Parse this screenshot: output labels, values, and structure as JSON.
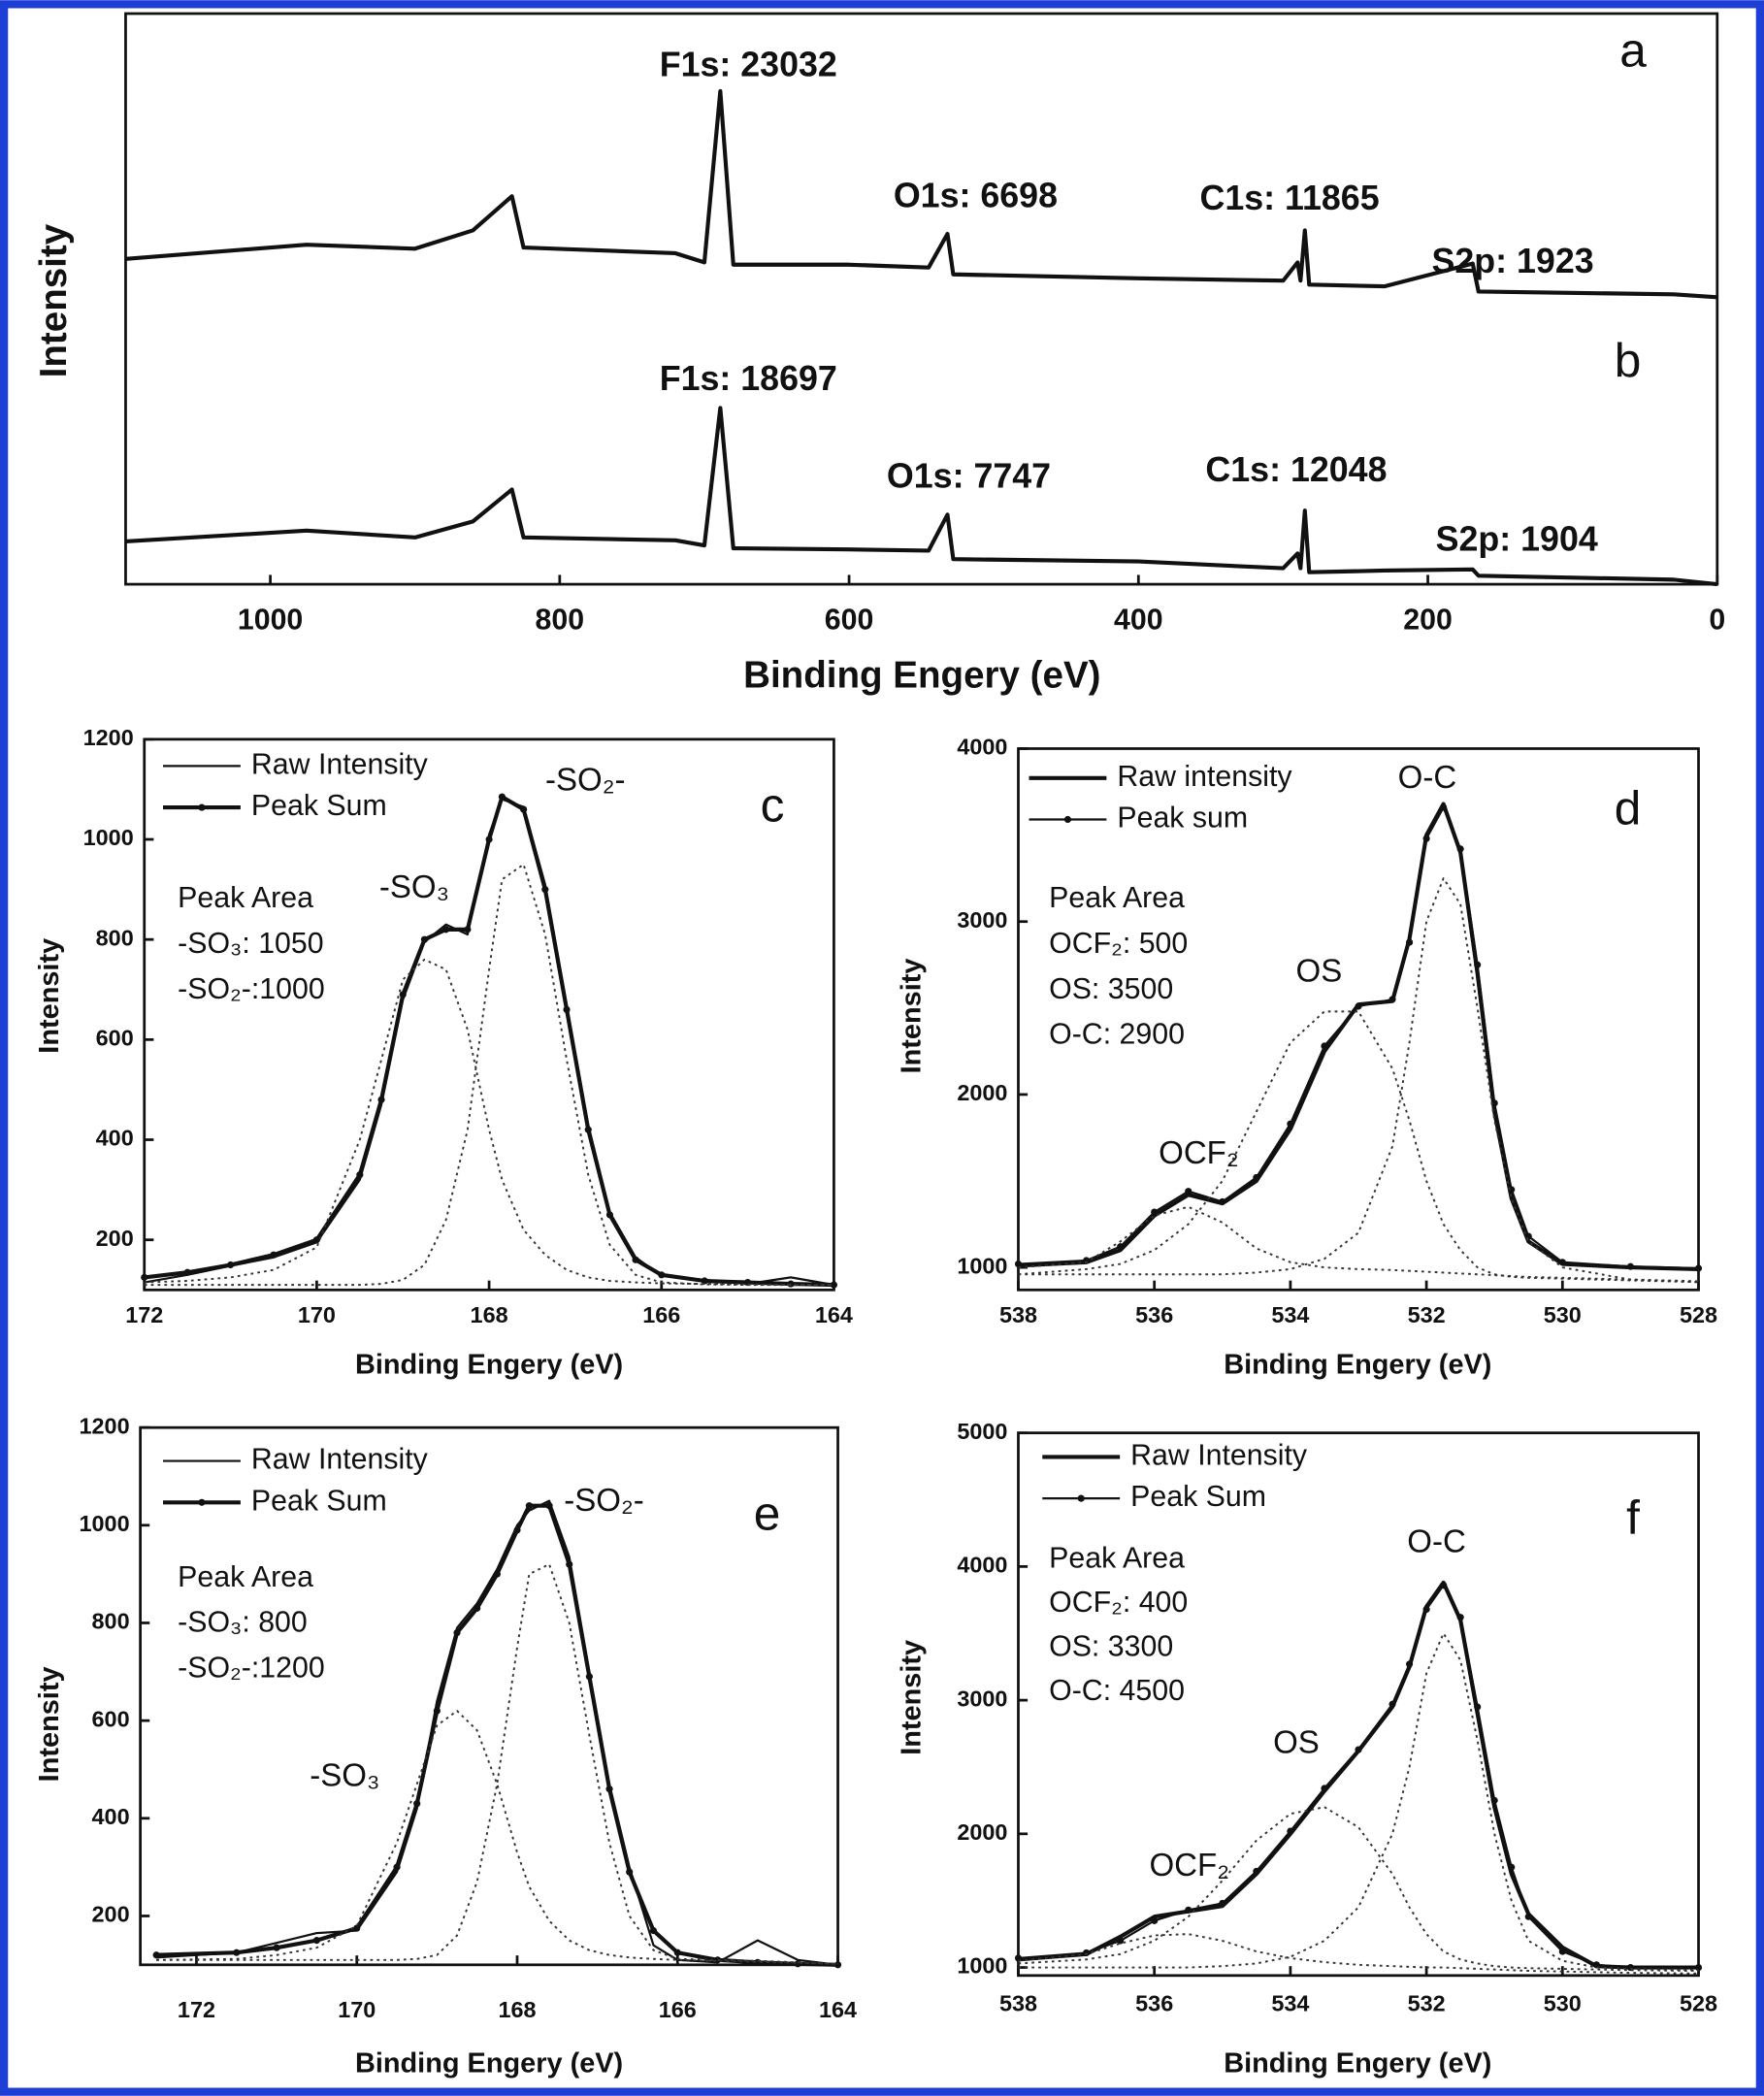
{
  "chart_data": [
    {
      "type": "line",
      "x_label": "Binding Engery (eV)",
      "y_label": "Intensity",
      "xlim": [
        1100,
        0
      ],
      "ylim": [
        0,
        100
      ],
      "xticks": [
        1000,
        800,
        600,
        400,
        200,
        0
      ],
      "panel_labels": [
        "a",
        "b"
      ],
      "annotations": [
        "F1s: 23032",
        "O1s: 6698",
        "C1s: 11865",
        "S2p: 1923",
        "F1s: 18697",
        "O1s: 7747",
        "C1s: 12048",
        "S2p: 1904"
      ],
      "x": [
        1100,
        975,
        900,
        860,
        833,
        825,
        720,
        700,
        689,
        680,
        600,
        545,
        532,
        528,
        400,
        300,
        290,
        288,
        285,
        282,
        230,
        169,
        165,
        30,
        0
      ],
      "series": [
        {
          "color": "#111111",
          "width": 3,
          "values": [
            57,
            59.5,
            58.8,
            62,
            68,
            59,
            58,
            56.4,
            86.4,
            56,
            56,
            55.5,
            61.4,
            54.3,
            53.6,
            53.2,
            56.4,
            53.2,
            62,
            52.5,
            52.2,
            56.2,
            51.3,
            50.8,
            50.3
          ]
        },
        {
          "color": "#111111",
          "width": 3,
          "values": [
            7.5,
            9.4,
            8.2,
            11,
            16.6,
            8.2,
            7.7,
            6.8,
            30.9,
            6.3,
            6.1,
            5.9,
            12.2,
            4.4,
            4,
            2.8,
            5.4,
            2.8,
            12.9,
            2.1,
            2.4,
            2.6,
            1.5,
            0.8,
            0
          ]
        }
      ]
    },
    {
      "type": "line",
      "x_label": "Binding Engery (eV)",
      "y_label": "Intensity",
      "xlim": [
        172,
        164
      ],
      "ylim": [
        100,
        1200
      ],
      "xticks": [
        172,
        170,
        168,
        166,
        164
      ],
      "yticks": [
        200,
        400,
        600,
        800,
        1000,
        1200
      ],
      "panel_labels": [
        "c"
      ],
      "annotations": [
        "-SO₂-",
        "-SO₃"
      ],
      "peak_area": [
        "Peak Area",
        "-SO₃: 1050",
        "-SO₂-:1000"
      ],
      "x": [
        172,
        171.5,
        171,
        170.5,
        170,
        169.5,
        169.25,
        169,
        168.75,
        168.5,
        168.25,
        168,
        167.85,
        167.6,
        167.35,
        167.1,
        166.85,
        166.6,
        166.3,
        166,
        165.5,
        165,
        164.5,
        164
      ],
      "series": [
        {
          "name": "Raw Intensity",
          "color": "#111111",
          "width": 1.6,
          "values": [
            115,
            130,
            148,
            165,
            195,
            320,
            470,
            680,
            795,
            830,
            810,
            1010,
            1080,
            1065,
            910,
            670,
            430,
            255,
            165,
            128,
            120,
            112,
            125,
            110
          ]
        },
        {
          "name": "Peak Sum",
          "color": "#111111",
          "width": 3,
          "markers": true,
          "values": [
            125,
            135,
            150,
            170,
            200,
            330,
            480,
            690,
            800,
            820,
            820,
            1000,
            1085,
            1060,
            900,
            660,
            420,
            250,
            160,
            130,
            118,
            115,
            112,
            110
          ]
        },
        {
          "color": "#333333",
          "width": 1.4,
          "dash": true,
          "values": [
            115,
            118,
            125,
            140,
            185,
            400,
            560,
            720,
            760,
            740,
            620,
            420,
            320,
            220,
            170,
            140,
            125,
            118,
            115,
            113,
            112,
            111,
            110,
            110
          ]
        },
        {
          "color": "#333333",
          "width": 1.4,
          "dash": true,
          "values": [
            110,
            110,
            110,
            110,
            110,
            110,
            112,
            120,
            150,
            240,
            420,
            740,
            920,
            950,
            810,
            560,
            330,
            190,
            130,
            115,
            111,
            110,
            110,
            110
          ]
        }
      ]
    },
    {
      "type": "line",
      "x_label": "Binding Engery (eV)",
      "y_label": "Intensity",
      "xlim": [
        538,
        528
      ],
      "ylim": [
        870,
        4000
      ],
      "xticks": [
        538,
        536,
        534,
        532,
        530,
        528
      ],
      "yticks": [
        1000,
        2000,
        3000,
        4000
      ],
      "panel_labels": [
        "d"
      ],
      "annotations": [
        "O-C",
        "OS",
        "OCF₂"
      ],
      "peak_area": [
        "Peak Area",
        "OCF₂: 500",
        "OS:  3500",
        "O-C: 2900"
      ],
      "x": [
        538,
        537,
        536.5,
        536,
        535.5,
        535,
        534.5,
        534,
        533.5,
        533,
        532.5,
        532.25,
        532,
        531.75,
        531.5,
        531.25,
        531,
        530.75,
        530.5,
        530,
        529,
        528
      ],
      "series": [
        {
          "name": "Raw intensity",
          "color": "#111111",
          "width": 3,
          "values": [
            1010,
            1030,
            1100,
            1300,
            1420,
            1370,
            1500,
            1800,
            2250,
            2520,
            2540,
            2900,
            3500,
            3680,
            3400,
            2700,
            1900,
            1400,
            1150,
            1020,
            1000,
            990
          ]
        },
        {
          "name": "Peak sum",
          "color": "#111111",
          "width": 1.6,
          "markers": true,
          "values": [
            1020,
            1040,
            1120,
            1320,
            1440,
            1380,
            1520,
            1830,
            2280,
            2510,
            2550,
            2880,
            3480,
            3660,
            3420,
            2750,
            1950,
            1450,
            1180,
            1030,
            1005,
            995
          ]
        },
        {
          "color": "#333333",
          "width": 1.4,
          "dash": true,
          "values": [
            1000,
            1030,
            1150,
            1300,
            1350,
            1260,
            1110,
            1030,
            1000,
            990,
            985,
            980,
            975,
            970,
            965,
            960,
            955,
            950,
            945,
            940,
            930,
            920
          ]
        },
        {
          "color": "#333333",
          "width": 1.4,
          "dash": true,
          "values": [
            960,
            990,
            1020,
            1100,
            1250,
            1500,
            1900,
            2300,
            2480,
            2480,
            2150,
            1850,
            1500,
            1250,
            1100,
            1000,
            960,
            945,
            940,
            935,
            925,
            915
          ]
        },
        {
          "color": "#333333",
          "width": 1.4,
          "dash": true,
          "values": [
            960,
            960,
            960,
            960,
            960,
            960,
            970,
            990,
            1050,
            1200,
            1700,
            2300,
            3000,
            3250,
            3100,
            2500,
            1850,
            1400,
            1150,
            1000,
            930,
            915
          ]
        }
      ]
    },
    {
      "type": "line",
      "x_label": "Binding Engery (eV)",
      "y_label": "Intensity",
      "xlim": [
        172.7,
        164
      ],
      "ylim": [
        100,
        1200
      ],
      "xticks": [
        172,
        170,
        168,
        166,
        164
      ],
      "yticks": [
        200,
        400,
        600,
        800,
        1000,
        1200
      ],
      "panel_labels": [
        "e"
      ],
      "annotations": [
        "-SO₂-",
        "-SO₃"
      ],
      "peak_area": [
        "Peak Area",
        "-SO₃: 800",
        "-SO₂-:1200"
      ],
      "x": [
        172.5,
        171.5,
        171,
        170.5,
        170,
        169.5,
        169.25,
        169,
        168.75,
        168.5,
        168.25,
        168,
        167.85,
        167.6,
        167.35,
        167.1,
        166.85,
        166.6,
        166.3,
        166,
        165.5,
        165,
        164.5,
        164
      ],
      "series": [
        {
          "name": "Raw Intensity",
          "color": "#111111",
          "width": 1.6,
          "values": [
            115,
            125,
            145,
            165,
            170,
            290,
            420,
            640,
            790,
            840,
            910,
            1000,
            1030,
            1050,
            935,
            700,
            470,
            300,
            140,
            110,
            105,
            150,
            110,
            100
          ]
        },
        {
          "name": "Peak Sum",
          "color": "#111111",
          "width": 3,
          "markers": true,
          "values": [
            120,
            125,
            135,
            150,
            175,
            300,
            430,
            620,
            780,
            830,
            900,
            990,
            1040,
            1040,
            920,
            690,
            460,
            290,
            170,
            125,
            110,
            105,
            102,
            100
          ]
        },
        {
          "color": "#333333",
          "width": 1.4,
          "dash": true,
          "values": [
            110,
            112,
            120,
            135,
            180,
            350,
            470,
            590,
            620,
            580,
            470,
            330,
            260,
            190,
            150,
            130,
            120,
            115,
            112,
            110,
            108,
            106,
            104,
            102
          ]
        },
        {
          "color": "#333333",
          "width": 1.4,
          "dash": true,
          "values": [
            110,
            110,
            110,
            110,
            110,
            110,
            112,
            120,
            160,
            270,
            470,
            750,
            900,
            920,
            800,
            570,
            350,
            200,
            130,
            112,
            110,
            108,
            105,
            102
          ]
        }
      ]
    },
    {
      "type": "line",
      "x_label": "Binding Engery (eV)",
      "y_label": "Intensity",
      "xlim": [
        538,
        528
      ],
      "ylim": [
        940,
        5000
      ],
      "xticks": [
        538,
        536,
        534,
        532,
        530,
        528
      ],
      "yticks": [
        1000,
        2000,
        3000,
        4000,
        5000
      ],
      "panel_labels": [
        "f"
      ],
      "annotations": [
        "O-C",
        "OS",
        "OCF₂"
      ],
      "peak_area": [
        "Peak Area",
        "OCF₂: 400",
        "OS:  3300",
        "O-C: 4500"
      ],
      "x": [
        538,
        537,
        536.5,
        536,
        535.5,
        535,
        534.5,
        534,
        533.5,
        533,
        532.5,
        532.25,
        532,
        531.75,
        531.5,
        531.25,
        531,
        530.75,
        530.5,
        530,
        529.5,
        529,
        528
      ],
      "series": [
        {
          "name": "Raw Intensity",
          "color": "#111111",
          "width": 3,
          "values": [
            1060,
            1100,
            1230,
            1380,
            1420,
            1460,
            1700,
            2000,
            2320,
            2620,
            2950,
            3250,
            3700,
            3880,
            3600,
            2900,
            2200,
            1700,
            1400,
            1150,
            1010,
            1000,
            1000
          ]
        },
        {
          "name": "Peak Sum",
          "color": "#111111",
          "width": 1.6,
          "markers": true,
          "values": [
            1070,
            1110,
            1200,
            1350,
            1430,
            1480,
            1720,
            2020,
            2340,
            2630,
            2970,
            3270,
            3680,
            3860,
            3620,
            2950,
            2250,
            1750,
            1380,
            1120,
            1020,
            1000,
            1000
          ]
        },
        {
          "color": "#333333",
          "width": 1.4,
          "dash": true,
          "values": [
            1050,
            1100,
            1180,
            1240,
            1250,
            1200,
            1120,
            1070,
            1040,
            1020,
            1010,
            1005,
            1000,
            1000,
            995,
            990,
            985,
            980,
            975,
            970,
            965,
            960,
            955
          ]
        },
        {
          "color": "#333333",
          "width": 1.4,
          "dash": true,
          "values": [
            1030,
            1060,
            1100,
            1200,
            1380,
            1650,
            1950,
            2150,
            2200,
            2050,
            1700,
            1450,
            1250,
            1120,
            1060,
            1030,
            1010,
            1000,
            995,
            990,
            985,
            980,
            975
          ]
        },
        {
          "color": "#333333",
          "width": 1.4,
          "dash": true,
          "values": [
            1000,
            1000,
            1000,
            1000,
            1000,
            1010,
            1030,
            1080,
            1200,
            1450,
            2000,
            2500,
            3200,
            3500,
            3300,
            2700,
            2000,
            1500,
            1200,
            1050,
            1000,
            990,
            980
          ]
        }
      ]
    }
  ]
}
